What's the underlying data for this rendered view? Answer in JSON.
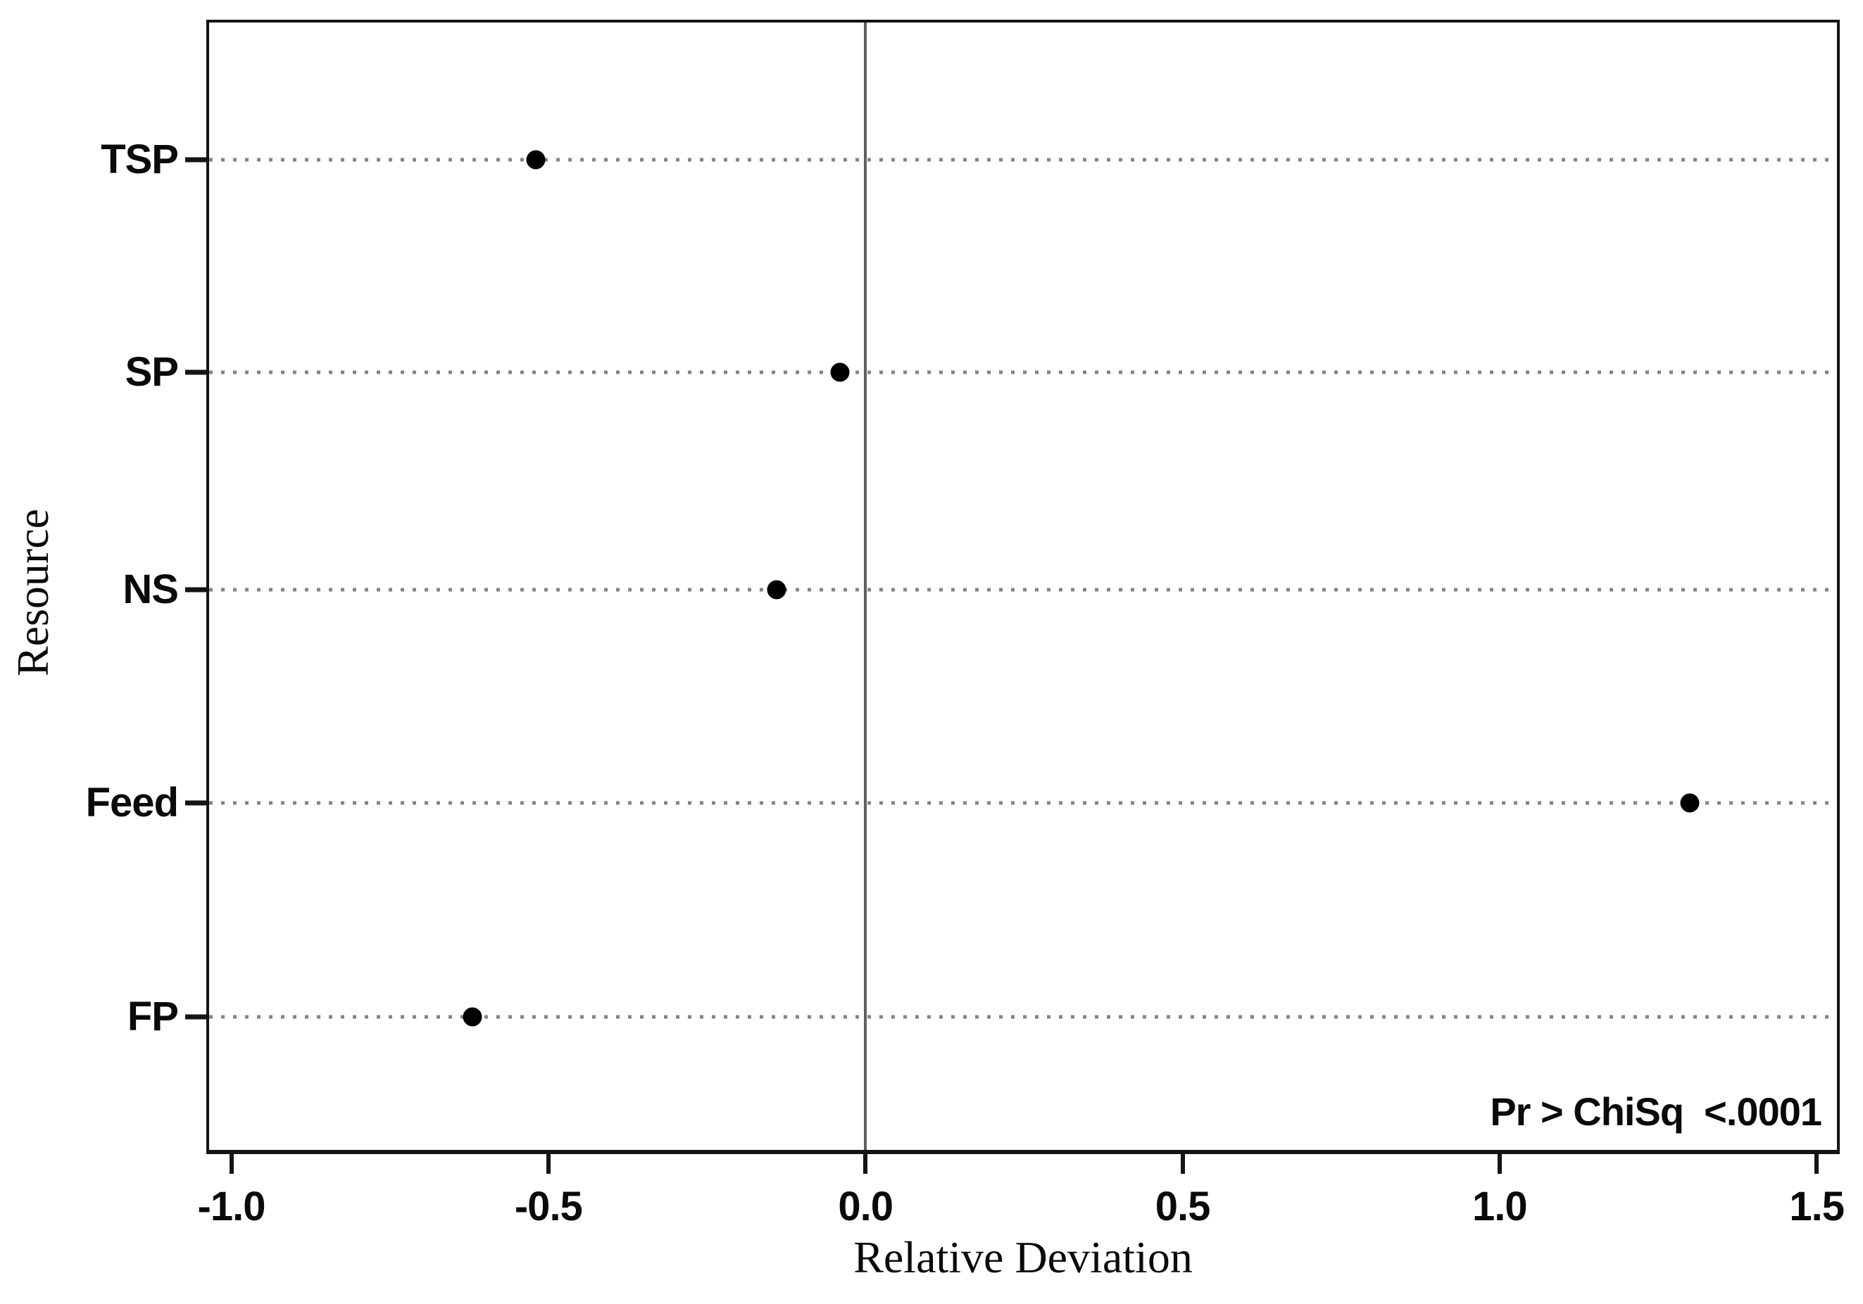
{
  "chart_data": {
    "type": "scatter",
    "subtype": "horizontal-dot-plot",
    "title": "",
    "xlabel": "Relative Deviation",
    "ylabel": "Resource",
    "categories": [
      "TSP",
      "SP",
      "NS",
      "Feed",
      "FP"
    ],
    "values": [
      -0.52,
      -0.04,
      -0.14,
      1.3,
      -0.62
    ],
    "x_ticks": [
      -1.0,
      -0.5,
      0.0,
      0.5,
      1.0,
      1.5
    ],
    "x_tick_labels": [
      "-1.0",
      "-0.5",
      "0.0",
      "0.5",
      "1.0",
      "1.5"
    ],
    "xlim": [
      -1.035,
      1.532
    ],
    "reference_line_x": 0.0,
    "grid": "dotted-horizontal-gridlines",
    "legend": "none",
    "annotation": "Pr > ChiSq  <.0001",
    "marker_color": "#000000",
    "gridline_color": "#848484",
    "reference_line_color": "#5f5f5f",
    "frame_color": "#141414",
    "background_color": "#ffffff",
    "layout": {
      "row_fractions": [
        0.122,
        0.31,
        0.503,
        0.692,
        0.882
      ]
    }
  }
}
